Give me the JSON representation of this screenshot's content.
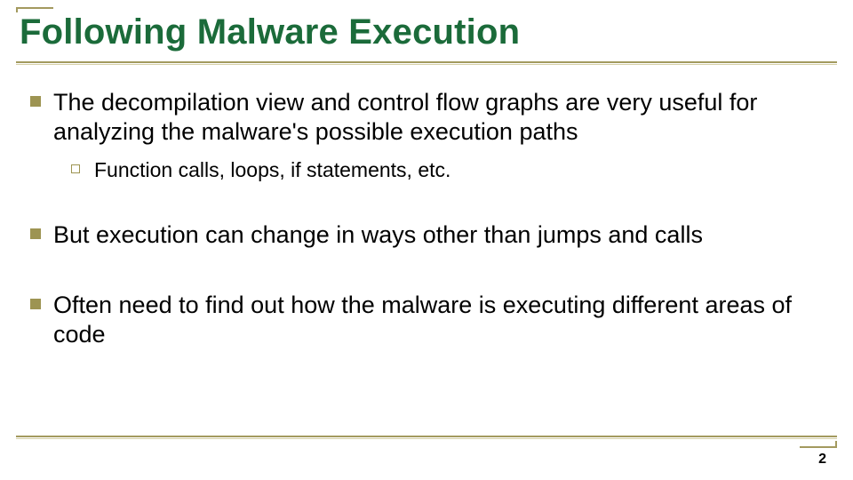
{
  "slide": {
    "title": "Following Malware Execution",
    "title_color": "#1b6b3a",
    "bullet_color": "#9d9452",
    "rule_color": "#a39a5f",
    "text_color": "#000000",
    "title_fontsize": 40,
    "l1_fontsize": 27,
    "l2_fontsize": 23,
    "bullets": [
      {
        "text": "The decompilation view and control flow graphs are very useful for analyzing the malware's possible execution paths",
        "sub": [
          {
            "text": "Function calls, loops, if statements, etc."
          }
        ]
      },
      {
        "text": "But execution can change in ways other than jumps and calls",
        "sub": []
      },
      {
        "text": "Often need to find out how the malware is executing different areas of code",
        "sub": []
      }
    ],
    "page_number": "2"
  }
}
